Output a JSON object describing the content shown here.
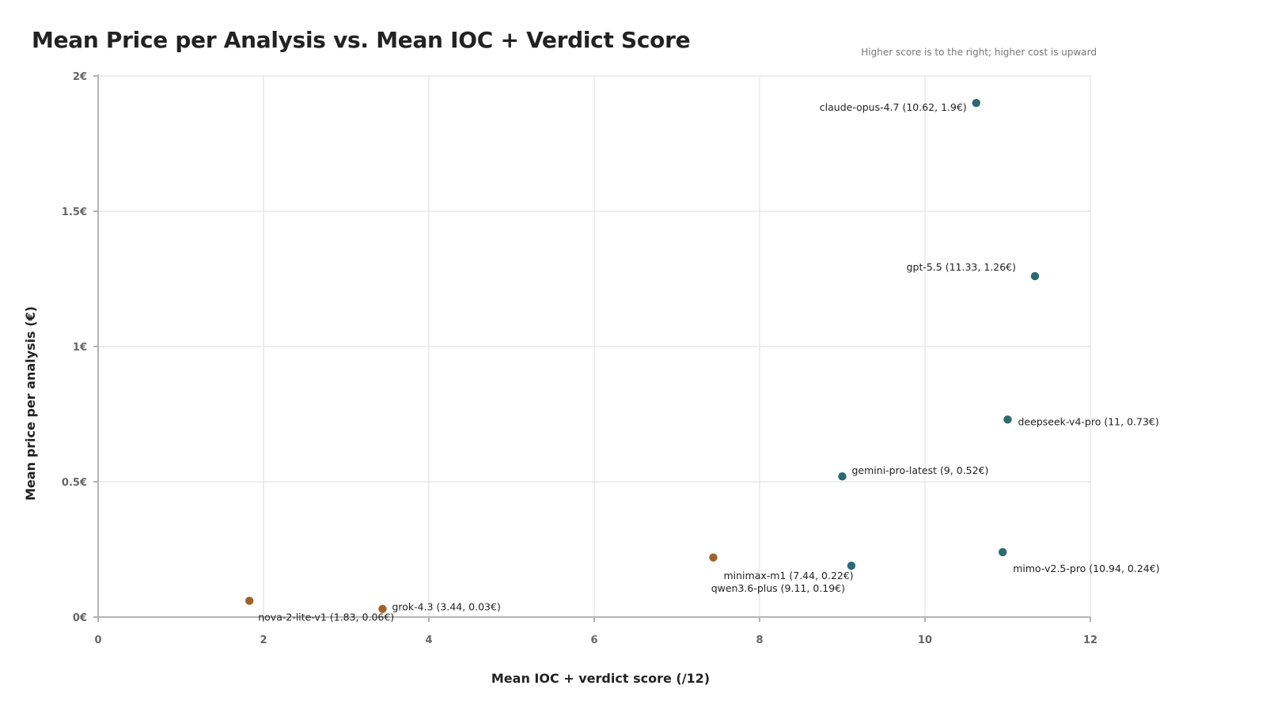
{
  "chart_data": {
    "type": "scatter",
    "title": "Mean Price per Analysis vs. Mean IOC + Verdict Score",
    "subtitle": "Higher score is to the right; higher cost is upward",
    "xlabel": "Mean IOC + verdict score (/12)",
    "ylabel": "Mean price per analysis (€)",
    "xlim": [
      0,
      12
    ],
    "ylim": [
      0,
      2
    ],
    "x_ticks": [
      "0",
      "2",
      "4",
      "6",
      "8",
      "10",
      "12"
    ],
    "y_ticks": [
      "0€",
      "0.5€",
      "1€",
      "1.5€",
      "2€"
    ],
    "grid": true,
    "colors": {
      "teal": "#2b6a70",
      "brown": "#a0622f"
    },
    "points": [
      {
        "label": "claude-opus-4.7 (10.62, 1.9€)",
        "x": 10.62,
        "y": 1.9,
        "color": "teal",
        "anchor": "end"
      },
      {
        "label": "gpt-5.5 (11.33, 1.26€)",
        "x": 11.33,
        "y": 1.26,
        "color": "teal",
        "anchor": "end"
      },
      {
        "label": "deepseek-v4-pro (11, 0.73€)",
        "x": 11,
        "y": 0.73,
        "color": "teal",
        "anchor": "start"
      },
      {
        "label": "gemini-pro-latest (9, 0.52€)",
        "x": 9,
        "y": 0.52,
        "color": "teal",
        "anchor": "start"
      },
      {
        "label": "mimo-v2.5-pro (10.94, 0.24€)",
        "x": 10.94,
        "y": 0.24,
        "color": "teal",
        "anchor": "start"
      },
      {
        "label": "qwen3.6-plus (9.11, 0.19€)",
        "x": 9.11,
        "y": 0.19,
        "color": "teal",
        "anchor": "end"
      },
      {
        "label": "minimax-m1 (7.44, 0.22€)",
        "x": 7.44,
        "y": 0.22,
        "color": "brown",
        "anchor": "start"
      },
      {
        "label": "grok-4.3 (3.44, 0.03€)",
        "x": 3.44,
        "y": 0.03,
        "color": "brown",
        "anchor": "start"
      },
      {
        "label": "nova-2-lite-v1 (1.83, 0.06€)",
        "x": 1.83,
        "y": 0.06,
        "color": "brown",
        "anchor": "start"
      }
    ]
  }
}
